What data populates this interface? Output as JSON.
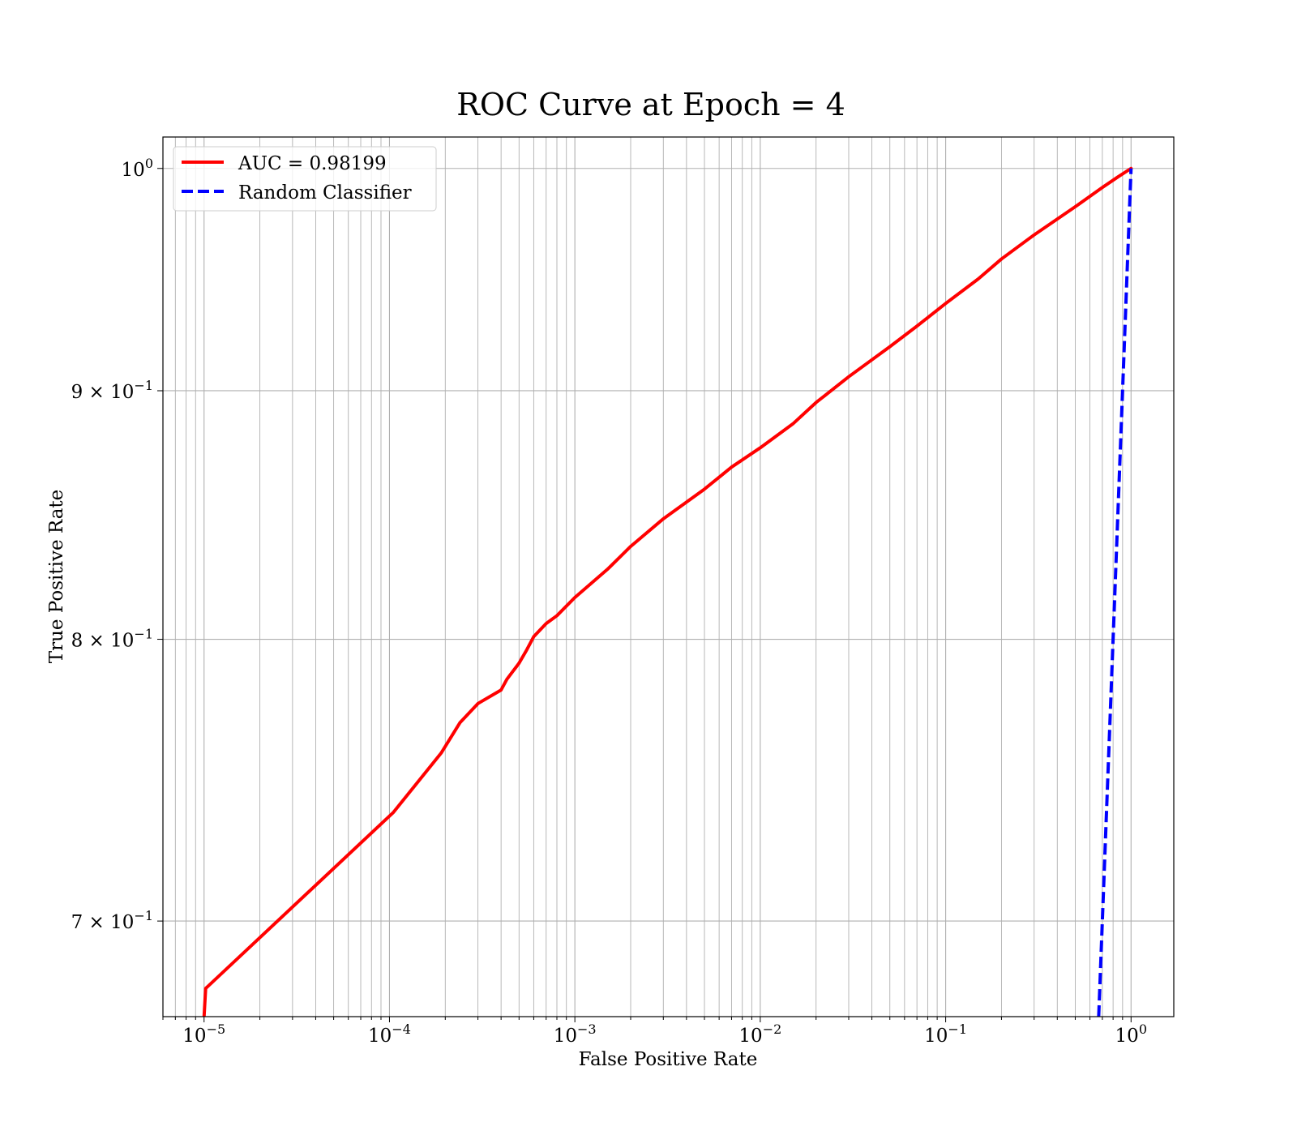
{
  "chart_data": {
    "type": "line",
    "title": "ROC Curve at Epoch = 4",
    "xlabel": "False Positive Rate",
    "ylabel": "True Positive Rate",
    "xscale": "log",
    "yscale": "log",
    "xlim": [
      6e-06,
      1.7
    ],
    "ylim": [
      0.669,
      1.015
    ],
    "grid": "both major and minor",
    "legend_position": "upper left",
    "x_ticks": [
      {
        "base": "10",
        "exp": "−5",
        "value": 1e-05
      },
      {
        "base": "10",
        "exp": "−4",
        "value": 0.0001
      },
      {
        "base": "10",
        "exp": "−3",
        "value": 0.001
      },
      {
        "base": "10",
        "exp": "−2",
        "value": 0.01
      },
      {
        "base": "10",
        "exp": "−1",
        "value": 0.1
      },
      {
        "base": "10",
        "exp": "0",
        "value": 1
      }
    ],
    "y_ticks": [
      {
        "mant": "",
        "base": "10",
        "exp": "0",
        "value": 1.0
      },
      {
        "mant": "9 × ",
        "base": "10",
        "exp": "−1",
        "value": 0.9
      },
      {
        "mant": "8 × ",
        "base": "10",
        "exp": "−1",
        "value": 0.8
      },
      {
        "mant": "7 × ",
        "base": "10",
        "exp": "−1",
        "value": 0.7
      }
    ],
    "series": [
      {
        "name": "AUC = 0.98199",
        "color": "#ff0000",
        "style": "solid",
        "x": [
          1e-05,
          1.02e-05,
          0.000105,
          0.00019,
          0.00024,
          0.0003,
          0.0004,
          0.00043,
          0.0005,
          0.00055,
          0.0006,
          0.0007,
          0.0008,
          0.001,
          0.0015,
          0.002,
          0.003,
          0.005,
          0.007,
          0.01,
          0.015,
          0.02,
          0.03,
          0.05,
          0.07,
          0.1,
          0.15,
          0.2,
          0.3,
          0.5,
          0.7,
          0.85,
          1.0
        ],
        "y": [
          0.669,
          0.678,
          0.737,
          0.758,
          0.769,
          0.776,
          0.781,
          0.785,
          0.791,
          0.796,
          0.801,
          0.806,
          0.809,
          0.816,
          0.827,
          0.836,
          0.847,
          0.859,
          0.868,
          0.876,
          0.886,
          0.895,
          0.906,
          0.919,
          0.928,
          0.938,
          0.949,
          0.958,
          0.969,
          0.982,
          0.991,
          0.996,
          1.0
        ]
      },
      {
        "name": "Random Classifier",
        "color": "#0000ff",
        "style": "dashed",
        "x": [
          0.669,
          1.0
        ],
        "y": [
          0.669,
          1.0
        ]
      }
    ]
  }
}
